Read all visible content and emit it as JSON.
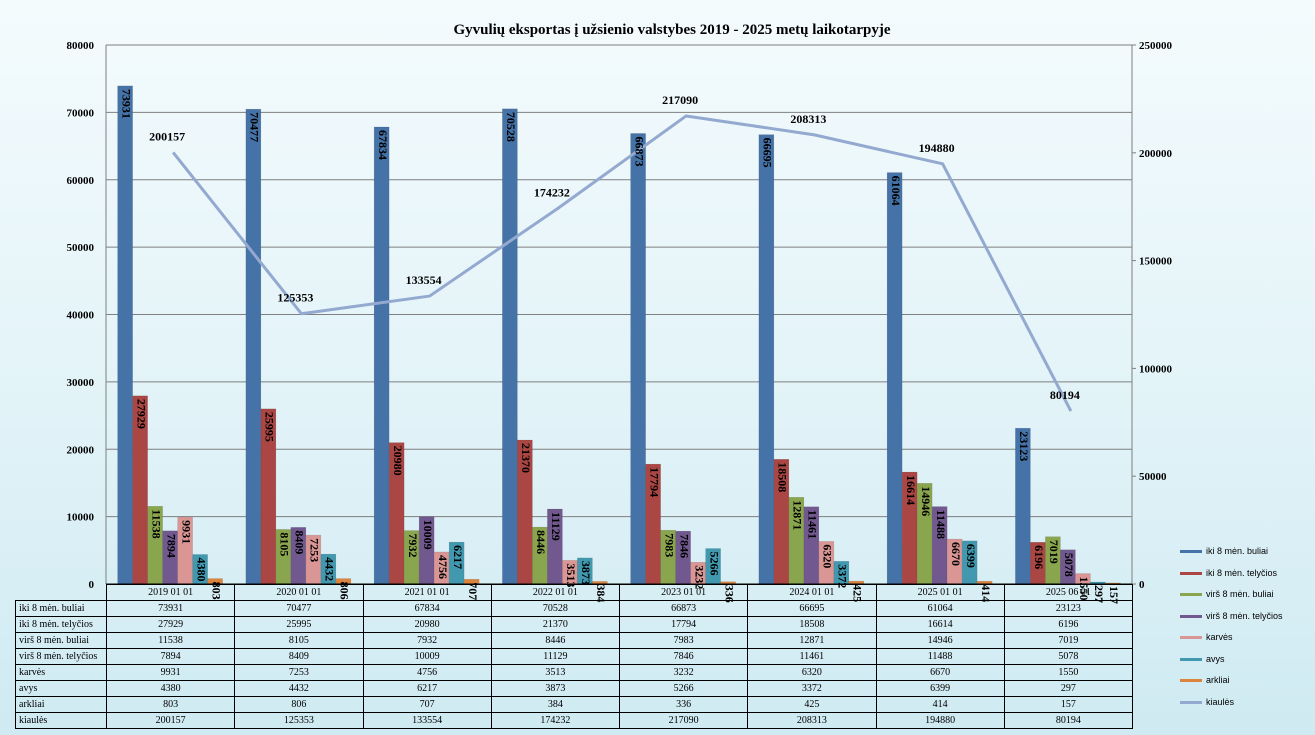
{
  "chart_data": {
    "type": "bar",
    "title": "Gyvulių  eksportas į užsienio  valstybes 2019 - 2025 metų  laikotarpyje",
    "categories": [
      "2019 01 01",
      "2020 01 01",
      "2021 01 01",
      "2022 01 01",
      "2023 01 01",
      "2024 01 01",
      "2025 01 01",
      "2025 06 01"
    ],
    "y_left": {
      "min": 0,
      "max": 80000,
      "ticks": [
        "0",
        "10000",
        "20000",
        "30000",
        "40000",
        "50000",
        "60000",
        "70000",
        "80000"
      ]
    },
    "y_right": {
      "min": 0,
      "max": 250000,
      "ticks": [
        "0",
        "50000",
        "100000",
        "150000",
        "200000",
        "250000"
      ]
    },
    "grid": true,
    "legend_position": "right",
    "series": [
      {
        "name": "iki 8 mėn. buliai",
        "type": "bar",
        "color": "#4572a7",
        "values": [
          73931,
          70477,
          67834,
          70528,
          66873,
          66695,
          61064,
          23123
        ]
      },
      {
        "name": "iki 8 mėn. telyčios",
        "type": "bar",
        "color": "#aa4643",
        "values": [
          27929,
          25995,
          20980,
          21370,
          17794,
          18508,
          16614,
          6196
        ]
      },
      {
        "name": "virš 8 mėn. buliai",
        "type": "bar",
        "color": "#89a54e",
        "values": [
          11538,
          8105,
          7932,
          8446,
          7983,
          12871,
          14946,
          7019
        ]
      },
      {
        "name": "virš 8 mėn. telyčios",
        "type": "bar",
        "color": "#71588f",
        "values": [
          7894,
          8409,
          10009,
          11129,
          7846,
          11461,
          11488,
          5078
        ]
      },
      {
        "name": "karvės",
        "type": "bar",
        "color": "#d99694",
        "values": [
          9931,
          7253,
          4756,
          3513,
          3232,
          6320,
          6670,
          1550
        ]
      },
      {
        "name": "avys",
        "type": "bar",
        "color": "#4198af",
        "values": [
          4380,
          4432,
          6217,
          3873,
          5266,
          3372,
          6399,
          297
        ]
      },
      {
        "name": "arkliai",
        "type": "bar",
        "color": "#db843d",
        "values": [
          803,
          806,
          707,
          384,
          336,
          425,
          414,
          157
        ]
      },
      {
        "name": "kiaulės",
        "type": "line",
        "axis": "right",
        "color": "#93a9cf",
        "values": [
          200157,
          125353,
          133554,
          174232,
          217090,
          208313,
          194880,
          80194
        ]
      }
    ]
  }
}
